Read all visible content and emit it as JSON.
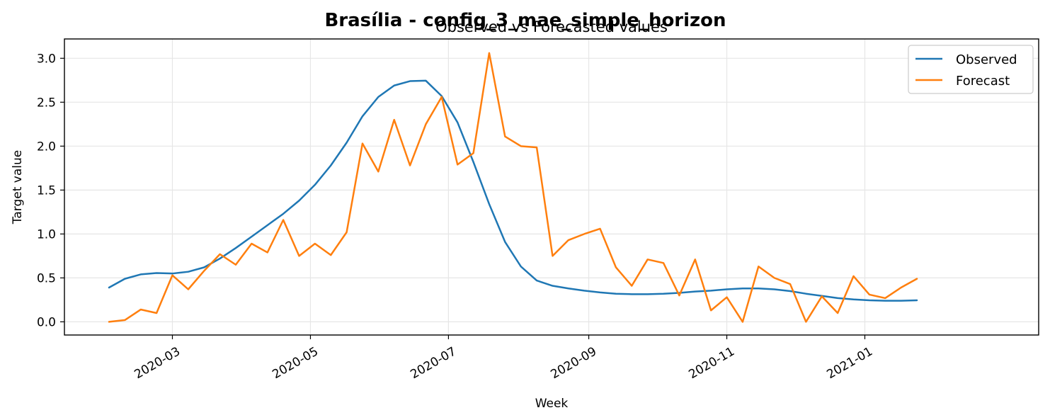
{
  "chart_data": {
    "type": "line",
    "title": "Brasília - config_3_mae_simple_horizon",
    "subtitle": "Observed vs Forecasted values",
    "xlabel": "Week",
    "ylabel": "Target value",
    "x_start": "2020-02-02",
    "x_step_days": 7,
    "x_ticks": [
      "2020-03",
      "2020-05",
      "2020-07",
      "2020-09",
      "2020-11",
      "2021-01"
    ],
    "ylim": [
      -0.15,
      3.22
    ],
    "y_ticks": [
      0.0,
      0.5,
      1.0,
      1.5,
      2.0,
      2.5,
      3.0
    ],
    "y_tick_labels": [
      "0.0",
      "0.5",
      "1.0",
      "1.5",
      "2.0",
      "2.5",
      "3.0"
    ],
    "grid": true,
    "legend_position": "top-right",
    "series": [
      {
        "name": "Observed",
        "color": "#1f77b4",
        "values": [
          0.39,
          0.49,
          0.54,
          0.555,
          0.55,
          0.57,
          0.62,
          0.72,
          0.84,
          0.97,
          1.1,
          1.23,
          1.38,
          1.56,
          1.78,
          2.04,
          2.34,
          2.56,
          2.69,
          2.74,
          2.745,
          2.57,
          2.27,
          1.82,
          1.34,
          0.91,
          0.63,
          0.47,
          0.41,
          0.38,
          0.355,
          0.335,
          0.32,
          0.315,
          0.315,
          0.32,
          0.33,
          0.345,
          0.355,
          0.37,
          0.38,
          0.38,
          0.37,
          0.35,
          0.32,
          0.295,
          0.27,
          0.255,
          0.245,
          0.24,
          0.24,
          0.245
        ]
      },
      {
        "name": "Forecast",
        "color": "#ff7f0e",
        "values": [
          0.0,
          0.02,
          0.14,
          0.1,
          0.53,
          0.37,
          0.58,
          0.77,
          0.65,
          0.89,
          0.79,
          1.16,
          0.75,
          0.89,
          0.76,
          1.02,
          2.03,
          1.71,
          2.3,
          1.78,
          2.25,
          2.56,
          1.79,
          1.92,
          3.06,
          2.11,
          2.0,
          1.985,
          0.75,
          0.93,
          1.0,
          1.06,
          0.62,
          0.41,
          0.71,
          0.67,
          0.3,
          0.71,
          0.13,
          0.28,
          0.0,
          0.63,
          0.5,
          0.43,
          0.0,
          0.29,
          0.1,
          0.52,
          0.31,
          0.27,
          0.39,
          0.49
        ]
      }
    ]
  }
}
